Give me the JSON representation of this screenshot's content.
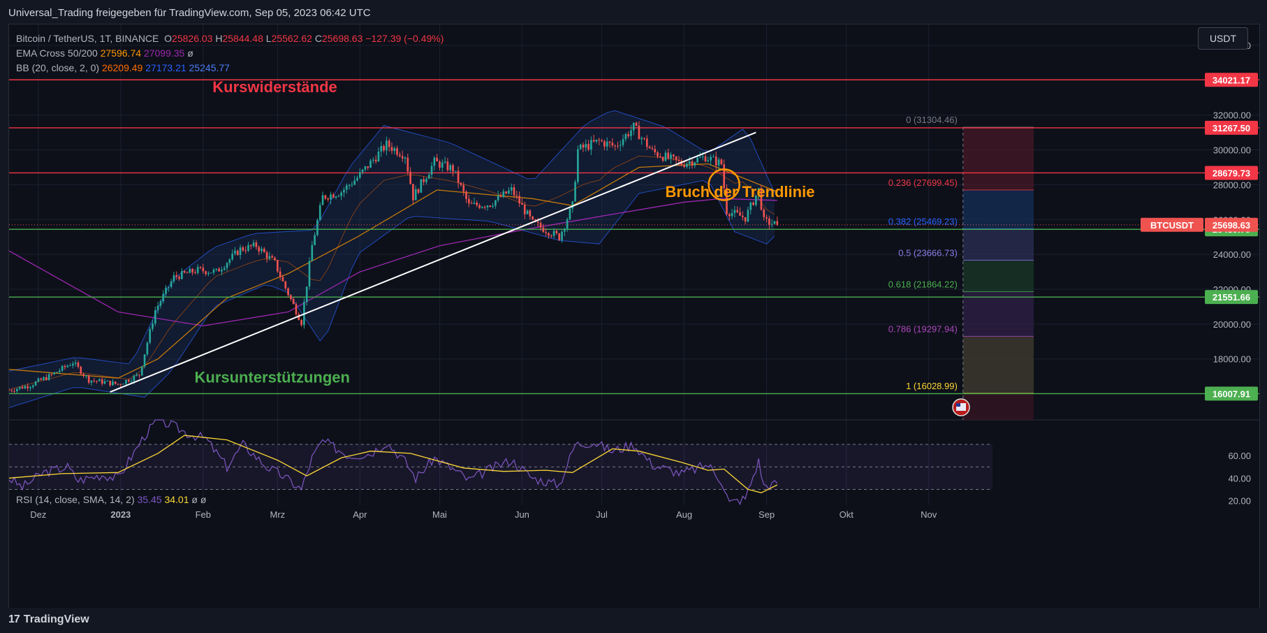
{
  "header": {
    "text": "Universal_Trading freigegeben für TradingView.com, Sep 05, 2023 06:42 UTC"
  },
  "legend": {
    "symbol": "Bitcoin / TetherUS, 1T, BINANCE",
    "o_label": "O",
    "o": "25826.03",
    "h_label": "H",
    "h": "25844.48",
    "l_label": "L",
    "l": "25562.62",
    "c_label": "C",
    "c": "25698.63",
    "change": "−127.39 (−0.49%)",
    "ema_label": "EMA Cross 50/200",
    "ema50": "27596.74",
    "ema200": "27099.35",
    "ema_extra": "ø",
    "bb_label": "BB (20, close, 2, 0)",
    "bb_basis": "26209.49",
    "bb_upper": "27173.21",
    "bb_lower": "25245.77"
  },
  "rsi_legend": {
    "label": "RSI (14, close, SMA, 14, 2)",
    "rsi": "35.45",
    "sma": "34.01",
    "extra": "ø ø"
  },
  "currency_button": "USDT",
  "footer": {
    "logo_mark": "17",
    "brand": "TradingView"
  },
  "colors": {
    "background": "#0d1019",
    "up": "#26a69a",
    "down": "#ef5350",
    "resistance": "#f23645",
    "support": "#4caf50",
    "ema50": "#ff9800",
    "ema200": "#9c27b0",
    "bb": "#2962ff",
    "rsi": "#7e57c2",
    "rsi_sma": "#fdd835",
    "trendline": "#ffffff",
    "circle": "#ff9800"
  },
  "chart_data": {
    "type": "candlestick",
    "symbol": "BTCUSDT",
    "ylim": [
      14500,
      37200
    ],
    "y_ticks": [
      {
        "value": 36000,
        "label": "36000.00"
      },
      {
        "value": 32000,
        "label": "32000.00"
      },
      {
        "value": 30000,
        "label": "30000.00"
      },
      {
        "value": 28000,
        "label": "28000.00"
      },
      {
        "value": 26000,
        "label": "26000.00"
      },
      {
        "value": 24000,
        "label": "24000.00"
      },
      {
        "value": 22000,
        "label": "22000.00"
      },
      {
        "value": 20000,
        "label": "20000.00"
      },
      {
        "value": 18000,
        "label": "18000.00"
      }
    ],
    "x_ticks": [
      {
        "date": "2022-12-01",
        "label": "Dez"
      },
      {
        "date": "2023-01-01",
        "label": "2023"
      },
      {
        "date": "2023-02-01",
        "label": "Feb"
      },
      {
        "date": "2023-03-01",
        "label": "Mrz"
      },
      {
        "date": "2023-04-01",
        "label": "Apr"
      },
      {
        "date": "2023-05-01",
        "label": "Mai"
      },
      {
        "date": "2023-06-01",
        "label": "Jun"
      },
      {
        "date": "2023-07-01",
        "label": "Jul"
      },
      {
        "date": "2023-08-01",
        "label": "Aug"
      },
      {
        "date": "2023-09-01",
        "label": "Sep"
      },
      {
        "date": "2023-10-01",
        "label": "Okt"
      },
      {
        "date": "2023-11-01",
        "label": "Nov"
      }
    ],
    "x_range": [
      "2022-11-20",
      "2023-11-25"
    ],
    "price_path": [
      [
        "2022-11-20",
        16200
      ],
      [
        "2022-11-28",
        16500
      ],
      [
        "2022-12-05",
        17000
      ],
      [
        "2022-12-14",
        17800
      ],
      [
        "2022-12-20",
        16800
      ],
      [
        "2022-12-31",
        16550
      ],
      [
        "2023-01-08",
        17100
      ],
      [
        "2023-01-14",
        20800
      ],
      [
        "2023-01-21",
        22700
      ],
      [
        "2023-01-30",
        23100
      ],
      [
        "2023-02-06",
        23000
      ],
      [
        "2023-02-15",
        24300
      ],
      [
        "2023-02-21",
        24500
      ],
      [
        "2023-02-28",
        23500
      ],
      [
        "2023-03-03",
        22400
      ],
      [
        "2023-03-10",
        20100
      ],
      [
        "2023-03-14",
        24500
      ],
      [
        "2023-03-18",
        27300
      ],
      [
        "2023-03-25",
        27600
      ],
      [
        "2023-03-31",
        28400
      ],
      [
        "2023-04-11",
        30300
      ],
      [
        "2023-04-18",
        29700
      ],
      [
        "2023-04-21",
        27300
      ],
      [
        "2023-04-29",
        29300
      ],
      [
        "2023-05-06",
        28900
      ],
      [
        "2023-05-12",
        26800
      ],
      [
        "2023-05-20",
        26900
      ],
      [
        "2023-05-28",
        27700
      ],
      [
        "2023-06-05",
        25800
      ],
      [
        "2023-06-15",
        25000
      ],
      [
        "2023-06-20",
        26800
      ],
      [
        "2023-06-22",
        30000
      ],
      [
        "2023-06-30",
        30500
      ],
      [
        "2023-07-06",
        30200
      ],
      [
        "2023-07-13",
        31300
      ],
      [
        "2023-07-20",
        29900
      ],
      [
        "2023-07-31",
        29200
      ],
      [
        "2023-08-09",
        29600
      ],
      [
        "2023-08-15",
        29200
      ],
      [
        "2023-08-17",
        26500
      ],
      [
        "2023-08-24",
        26100
      ],
      [
        "2023-08-29",
        27700
      ],
      [
        "2023-08-31",
        25900
      ],
      [
        "2023-09-05",
        25700
      ]
    ],
    "last_price": 25698.63,
    "ema50_path": [
      [
        "2022-11-20",
        17400
      ],
      [
        "2022-12-31",
        16900
      ],
      [
        "2023-01-15",
        18000
      ],
      [
        "2023-02-10",
        21500
      ],
      [
        "2023-03-05",
        22900
      ],
      [
        "2023-03-31",
        25000
      ],
      [
        "2023-04-30",
        27700
      ],
      [
        "2023-06-05",
        27200
      ],
      [
        "2023-06-20",
        26800
      ],
      [
        "2023-07-15",
        29000
      ],
      [
        "2023-08-10",
        29200
      ],
      [
        "2023-09-05",
        27600
      ]
    ],
    "ema200_path": [
      [
        "2022-11-20",
        24200
      ],
      [
        "2022-12-31",
        20700
      ],
      [
        "2023-02-01",
        19900
      ],
      [
        "2023-03-05",
        20700
      ],
      [
        "2023-04-01",
        23000
      ],
      [
        "2023-05-01",
        24500
      ],
      [
        "2023-06-01",
        25400
      ],
      [
        "2023-07-01",
        26200
      ],
      [
        "2023-08-01",
        27000
      ],
      [
        "2023-08-15",
        27200
      ],
      [
        "2023-09-05",
        27100
      ]
    ],
    "bb_upper_path": [
      [
        "2022-11-20",
        17300
      ],
      [
        "2022-12-15",
        18100
      ],
      [
        "2023-01-05",
        17700
      ],
      [
        "2023-01-20",
        22500
      ],
      [
        "2023-02-05",
        24400
      ],
      [
        "2023-02-20",
        25200
      ],
      [
        "2023-03-15",
        25400
      ],
      [
        "2023-03-28",
        29000
      ],
      [
        "2023-04-10",
        31400
      ],
      [
        "2023-05-05",
        30400
      ],
      [
        "2023-06-05",
        28200
      ],
      [
        "2023-06-25",
        31500
      ],
      [
        "2023-07-05",
        32300
      ],
      [
        "2023-07-25",
        31300
      ],
      [
        "2023-08-10",
        29800
      ],
      [
        "2023-08-24",
        31300
      ],
      [
        "2023-09-05",
        27200
      ]
    ],
    "bb_lower_path": [
      [
        "2022-11-20",
        15200
      ],
      [
        "2022-12-15",
        16400
      ],
      [
        "2023-01-10",
        15800
      ],
      [
        "2023-01-20",
        17300
      ],
      [
        "2023-02-05",
        21000
      ],
      [
        "2023-02-25",
        22300
      ],
      [
        "2023-03-05",
        21800
      ],
      [
        "2023-03-18",
        18800
      ],
      [
        "2023-03-31",
        24000
      ],
      [
        "2023-04-20",
        26200
      ],
      [
        "2023-05-20",
        25900
      ],
      [
        "2023-06-15",
        24800
      ],
      [
        "2023-06-30",
        24600
      ],
      [
        "2023-07-15",
        27500
      ],
      [
        "2023-08-10",
        28300
      ],
      [
        "2023-08-20",
        25300
      ],
      [
        "2023-09-01",
        24600
      ],
      [
        "2023-09-05",
        25200
      ]
    ],
    "horizontal_levels": [
      {
        "value": 34021.17,
        "label": "34021.17",
        "kind": "resistance"
      },
      {
        "value": 31267.5,
        "label": "31267.50",
        "kind": "resistance"
      },
      {
        "value": 28679.73,
        "label": "28679.73",
        "kind": "resistance"
      },
      {
        "value": 25439.7,
        "label": "25439.70",
        "kind": "support"
      },
      {
        "value": 21551.66,
        "label": "21551.66",
        "kind": "support"
      },
      {
        "value": 16007.91,
        "label": "16007.91",
        "kind": "support"
      }
    ],
    "fibonacci": {
      "x_end": "2023-09-15",
      "levels": [
        {
          "ratio": "0",
          "value": 31304.46,
          "label": "0 (31304.46)",
          "color": "#787b86"
        },
        {
          "ratio": "0.236",
          "value": 27699.45,
          "label": "0.236 (27699.45)",
          "color": "#f23645"
        },
        {
          "ratio": "0.382",
          "value": 25469.23,
          "label": "0.382 (25469.23)",
          "color": "#2962ff"
        },
        {
          "ratio": "0.5",
          "value": 23666.73,
          "label": "0.5 (23666.73)",
          "color": "#8c7ae6"
        },
        {
          "ratio": "0.618",
          "value": 21864.22,
          "label": "0.618 (21864.22)",
          "color": "#4caf50"
        },
        {
          "ratio": "0.786",
          "value": 19297.94,
          "label": "0.786 (19297.94)",
          "color": "#ab47bc"
        },
        {
          "ratio": "1",
          "value": 16028.99,
          "label": "1 (16028.99)",
          "color": "#fdd835"
        }
      ]
    },
    "trendline": {
      "from": [
        "2022-12-28",
        16100
      ],
      "to": [
        "2023-08-28",
        31000
      ]
    },
    "circle_marker": {
      "date": "2023-08-16",
      "value": 28000
    },
    "annotations": [
      {
        "text": "Kurswiderstände",
        "date": "2023-02-28",
        "value": 33300,
        "color": "#f23645"
      },
      {
        "text": "Bruch der Trendlinie",
        "date": "2023-08-22",
        "value": 27300,
        "color": "#ff9800"
      },
      {
        "text": "Kursunterstützungen",
        "date": "2023-02-27",
        "value": 16650,
        "color": "#4caf50"
      }
    ],
    "price_label": "BTCUSDT",
    "rsi": {
      "ylim": [
        16,
        88
      ],
      "ticks": [
        {
          "value": 60,
          "label": "60.00"
        },
        {
          "value": 40,
          "label": "40.00"
        },
        {
          "value": 20,
          "label": "20.00"
        }
      ],
      "band": [
        30,
        70
      ],
      "dashed": [
        30,
        50,
        70
      ],
      "rsi_path": [
        [
          "2022-11-20",
          40
        ],
        [
          "2022-11-25",
          32
        ],
        [
          "2022-12-03",
          45
        ],
        [
          "2022-12-12",
          50
        ],
        [
          "2022-12-16",
          38
        ],
        [
          "2022-12-25",
          43
        ],
        [
          "2022-12-31",
          40
        ],
        [
          "2023-01-10",
          78
        ],
        [
          "2023-01-15",
          92
        ],
        [
          "2023-01-21",
          86
        ],
        [
          "2023-01-26",
          80
        ],
        [
          "2023-02-02",
          75
        ],
        [
          "2023-02-10",
          50
        ],
        [
          "2023-02-16",
          70
        ],
        [
          "2023-02-25",
          50
        ],
        [
          "2023-03-03",
          42
        ],
        [
          "2023-03-10",
          30
        ],
        [
          "2023-03-14",
          58
        ],
        [
          "2023-03-18",
          73
        ],
        [
          "2023-03-28",
          60
        ],
        [
          "2023-04-05",
          62
        ],
        [
          "2023-04-11",
          72
        ],
        [
          "2023-04-18",
          55
        ],
        [
          "2023-04-22",
          40
        ],
        [
          "2023-04-29",
          58
        ],
        [
          "2023-05-08",
          45
        ],
        [
          "2023-05-12",
          38
        ],
        [
          "2023-05-20",
          48
        ],
        [
          "2023-05-28",
          56
        ],
        [
          "2023-06-05",
          40
        ],
        [
          "2023-06-15",
          34
        ],
        [
          "2023-06-21",
          70
        ],
        [
          "2023-06-28",
          72
        ],
        [
          "2023-07-05",
          64
        ],
        [
          "2023-07-13",
          70
        ],
        [
          "2023-07-20",
          52
        ],
        [
          "2023-07-31",
          44
        ],
        [
          "2023-08-10",
          52
        ],
        [
          "2023-08-15",
          38
        ],
        [
          "2023-08-18",
          18
        ],
        [
          "2023-08-24",
          22
        ],
        [
          "2023-08-29",
          55
        ],
        [
          "2023-08-31",
          33
        ],
        [
          "2023-09-05",
          35
        ]
      ],
      "sma_path": [
        [
          "2022-11-20",
          40
        ],
        [
          "2022-12-10",
          44
        ],
        [
          "2022-12-31",
          45
        ],
        [
          "2023-01-15",
          62
        ],
        [
          "2023-01-25",
          78
        ],
        [
          "2023-02-10",
          74
        ],
        [
          "2023-03-01",
          56
        ],
        [
          "2023-03-12",
          42
        ],
        [
          "2023-03-25",
          58
        ],
        [
          "2023-04-05",
          64
        ],
        [
          "2023-04-20",
          62
        ],
        [
          "2023-05-10",
          49
        ],
        [
          "2023-05-25",
          46
        ],
        [
          "2023-06-10",
          47
        ],
        [
          "2023-06-20",
          45
        ],
        [
          "2023-07-05",
          66
        ],
        [
          "2023-07-15",
          64
        ],
        [
          "2023-07-31",
          54
        ],
        [
          "2023-08-10",
          47
        ],
        [
          "2023-08-16",
          48
        ],
        [
          "2023-08-25",
          30
        ],
        [
          "2023-08-30",
          27
        ],
        [
          "2023-09-05",
          34
        ]
      ]
    }
  }
}
